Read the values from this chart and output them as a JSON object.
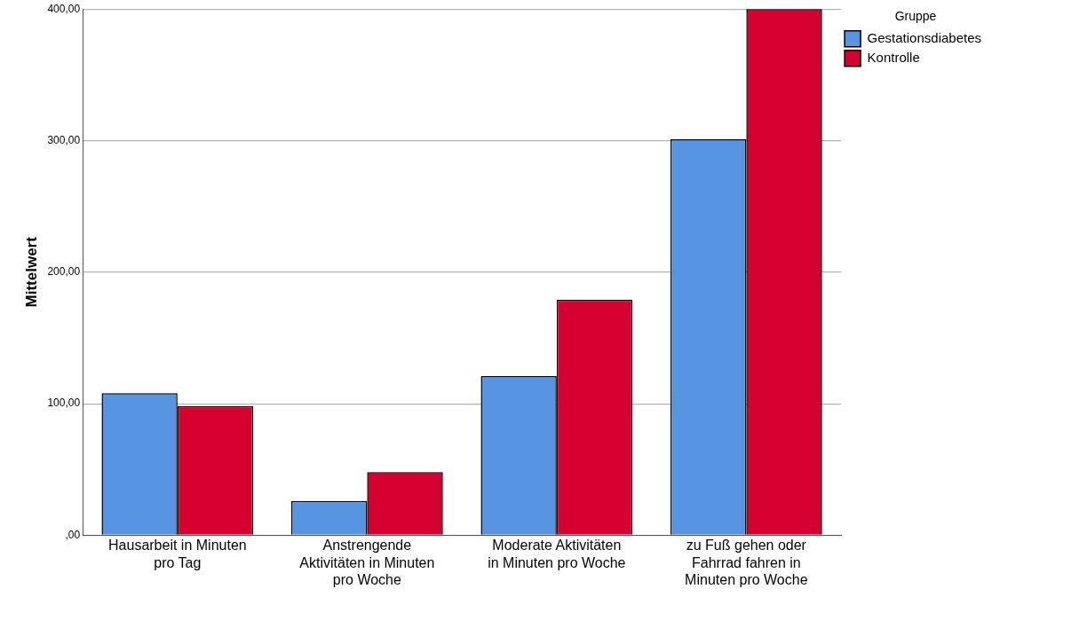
{
  "chart_data": {
    "type": "bar",
    "ylabel": "Mittelwert",
    "legend_title": "Gruppe",
    "categories": [
      "Hausarbeit in Minuten pro Tag",
      "Anstrengende Aktivitäten in Minuten pro Woche",
      "Moderate Aktivitäten in Minuten pro Woche",
      "zu Fuß gehen oder Fahrrad fahren in Minuten pro Woche"
    ],
    "series": [
      {
        "name": "Gestationsdiabetes",
        "color": "#5795e3",
        "values": [
          108,
          26,
          121,
          301
        ]
      },
      {
        "name": "Kontrolle",
        "color": "#d40030",
        "values": [
          98,
          48,
          179,
          400
        ]
      }
    ],
    "ylim": [
      0,
      400
    ],
    "yticks": [
      {
        "value": 0,
        "label": ",00"
      },
      {
        "value": 100,
        "label": "100,00"
      },
      {
        "value": 200,
        "label": "200,00"
      },
      {
        "value": 300,
        "label": "300,00"
      },
      {
        "value": 400,
        "label": "400,00"
      }
    ],
    "grid": "y",
    "legend": "top right"
  }
}
